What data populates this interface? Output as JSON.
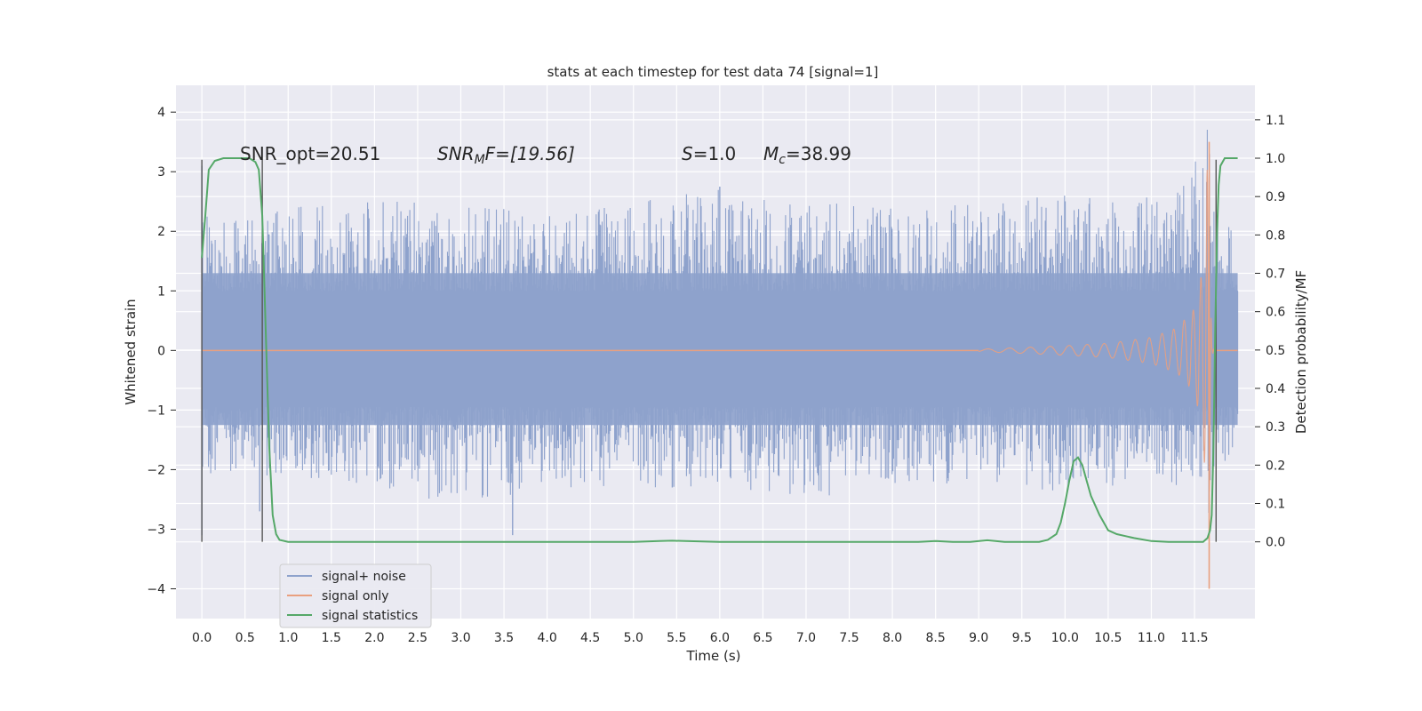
{
  "chart_data": {
    "type": "line",
    "title": "stats at each timestep for test data 74 [signal=1]",
    "xlabel": "Time (s)",
    "ylabel_left": "Whitened strain",
    "ylabel_right": "Detection probability/MF",
    "xlim": [
      -0.3,
      12.2
    ],
    "ylim_left": [
      -4.5,
      4.45
    ],
    "ylim_right": [
      -0.2,
      1.19
    ],
    "xticks": [
      "0.0",
      "0.5",
      "1.0",
      "1.5",
      "2.0",
      "2.5",
      "3.0",
      "3.5",
      "4.0",
      "4.5",
      "5.0",
      "5.5",
      "6.0",
      "6.5",
      "7.0",
      "7.5",
      "8.0",
      "8.5",
      "9.0",
      "9.5",
      "10.0",
      "10.5",
      "11.0",
      "11.5"
    ],
    "yticks_left": [
      "4",
      "3",
      "2",
      "1",
      "0",
      "−1",
      "−2",
      "−3",
      "−4"
    ],
    "yticks_right": [
      "1.1",
      "1.0",
      "0.9",
      "0.8",
      "0.7",
      "0.6",
      "0.5",
      "0.4",
      "0.3",
      "0.2",
      "0.1",
      "0.0"
    ],
    "grid": true,
    "legend_position": "lower-left",
    "annotations": {
      "snr_opt": "SNR_opt=20.51",
      "snr_mf_base": "SNR",
      "snr_mf_sub": "M",
      "snr_mf_rest": "F=[19.56]",
      "s_var": "S",
      "s_rest": "=1.0",
      "mc_var": "M",
      "mc_sub": "c",
      "mc_rest": "=38.99"
    },
    "series": [
      {
        "name": "signal+ noise",
        "color": "#8ea2cc",
        "envelope_x": [
          0,
          0.5,
          1,
          2,
          3,
          4,
          5,
          6,
          7,
          8,
          9,
          10,
          11,
          11.4,
          11.6,
          11.65,
          11.7,
          12.0
        ],
        "envelope_max": [
          2.4,
          2.2,
          2.4,
          2.5,
          2.5,
          2.3,
          2.5,
          2.7,
          2.5,
          2.4,
          2.5,
          2.6,
          2.6,
          2.8,
          3.8,
          4.0,
          2.6,
          2.0
        ],
        "envelope_min": [
          -2.1,
          -2.0,
          -2.2,
          -2.3,
          -2.6,
          -2.3,
          -2.3,
          -2.3,
          -2.5,
          -2.4,
          -2.2,
          -2.4,
          -2.2,
          -2.4,
          -2.8,
          -3.5,
          -2.3,
          -1.5
        ],
        "spikes": [
          {
            "x": 0.0,
            "y": 3.1
          },
          {
            "x": 0.0,
            "y": -3.1
          },
          {
            "x": 0.67,
            "y": -2.7
          },
          {
            "x": 3.6,
            "y": -3.1
          },
          {
            "x": 5.45,
            "y": -2.3
          },
          {
            "x": 6.0,
            "y": 2.75
          }
        ]
      },
      {
        "name": "signal only",
        "color": "#e9a07f",
        "envelope_x": [
          0,
          9.0,
          10.0,
          10.5,
          11.0,
          11.3,
          11.5,
          11.6,
          11.66,
          11.7,
          12.0
        ],
        "amplitude": [
          0.0,
          0.02,
          0.08,
          0.12,
          0.22,
          0.38,
          0.7,
          1.4,
          3.5,
          0.05,
          0.0
        ]
      },
      {
        "name": "signal statistics",
        "color": "#55a868",
        "x": [
          0.0,
          0.04,
          0.08,
          0.15,
          0.25,
          0.4,
          0.55,
          0.62,
          0.66,
          0.7,
          0.74,
          0.78,
          0.82,
          0.86,
          0.9,
          1.0,
          2.0,
          3.0,
          4.0,
          5.0,
          5.3,
          5.45,
          5.6,
          6.0,
          7.0,
          8.0,
          8.3,
          8.5,
          8.7,
          8.9,
          9.1,
          9.3,
          9.5,
          9.7,
          9.8,
          9.9,
          9.95,
          10.0,
          10.05,
          10.1,
          10.15,
          10.2,
          10.25,
          10.3,
          10.4,
          10.5,
          10.6,
          10.7,
          10.8,
          11.0,
          11.2,
          11.4,
          11.6,
          11.65,
          11.68,
          11.7,
          11.72,
          11.74,
          11.76,
          11.78,
          11.8,
          11.85,
          11.9,
          11.95,
          12.0
        ],
        "y": [
          0.74,
          0.85,
          0.97,
          0.993,
          1.0,
          1.0,
          1.0,
          0.99,
          0.97,
          0.85,
          0.55,
          0.25,
          0.07,
          0.02,
          0.005,
          0.0,
          0.0,
          0.0,
          0.0,
          0.0,
          0.002,
          0.003,
          0.002,
          0.0,
          0.0,
          0.0,
          0.0,
          0.002,
          0.0,
          0.0,
          0.004,
          0.0,
          0.0,
          0.0,
          0.005,
          0.02,
          0.05,
          0.1,
          0.16,
          0.21,
          0.22,
          0.2,
          0.16,
          0.12,
          0.07,
          0.03,
          0.02,
          0.015,
          0.01,
          0.002,
          0.0,
          0.0,
          0.0,
          0.01,
          0.03,
          0.07,
          0.25,
          0.55,
          0.8,
          0.93,
          0.98,
          1.0,
          1.0,
          1.0,
          1.0
        ]
      }
    ],
    "vertical_markers": {
      "color": "#555555",
      "x": [
        0.0,
        0.7,
        11.75
      ]
    }
  }
}
